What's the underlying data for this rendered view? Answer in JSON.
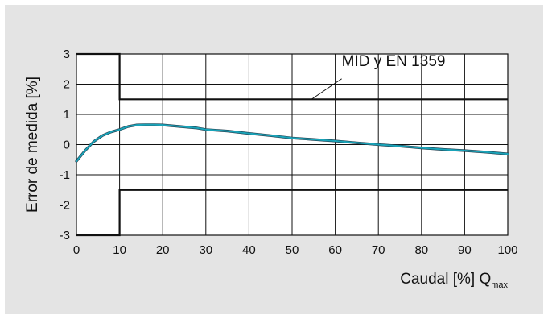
{
  "chart_data": {
    "type": "line",
    "xlabel": "Caudal [%] Q",
    "xlabel_subscript": "max",
    "ylabel": "Error de medida [%]",
    "xlim": [
      0,
      100
    ],
    "ylim": [
      -3,
      3
    ],
    "x_ticks": [
      0,
      10,
      20,
      30,
      40,
      50,
      60,
      70,
      80,
      90,
      100
    ],
    "y_ticks": [
      3,
      2,
      1,
      0,
      -1,
      -2,
      -3
    ],
    "grid": true,
    "annotation": "MID y EN 1359",
    "colors": {
      "curve": "#1aa3b8",
      "curve_shadow": "#1f3a4a",
      "limits": "#111111",
      "grid": "#111111",
      "background": "#ffffff",
      "panel": "#e4e4e4"
    },
    "series": [
      {
        "role": "error-curve",
        "x": [
          0,
          2,
          4,
          6,
          8,
          10,
          12,
          14,
          16,
          18,
          20,
          24,
          28,
          30,
          35,
          40,
          45,
          50,
          55,
          60,
          65,
          70,
          75,
          80,
          85,
          90,
          95,
          100
        ],
        "y": [
          -0.55,
          -0.2,
          0.1,
          0.3,
          0.42,
          0.5,
          0.6,
          0.65,
          0.66,
          0.66,
          0.65,
          0.6,
          0.55,
          0.5,
          0.45,
          0.37,
          0.3,
          0.22,
          0.17,
          0.12,
          0.06,
          0.0,
          -0.05,
          -0.11,
          -0.16,
          -0.2,
          -0.25,
          -0.31
        ]
      },
      {
        "role": "upper-limit",
        "x": [
          0,
          10,
          10,
          100
        ],
        "y": [
          3,
          3,
          1.5,
          1.5
        ]
      },
      {
        "role": "lower-limit",
        "x": [
          0,
          10,
          10,
          100
        ],
        "y": [
          -3,
          -3,
          -1.5,
          -1.5
        ]
      }
    ]
  }
}
